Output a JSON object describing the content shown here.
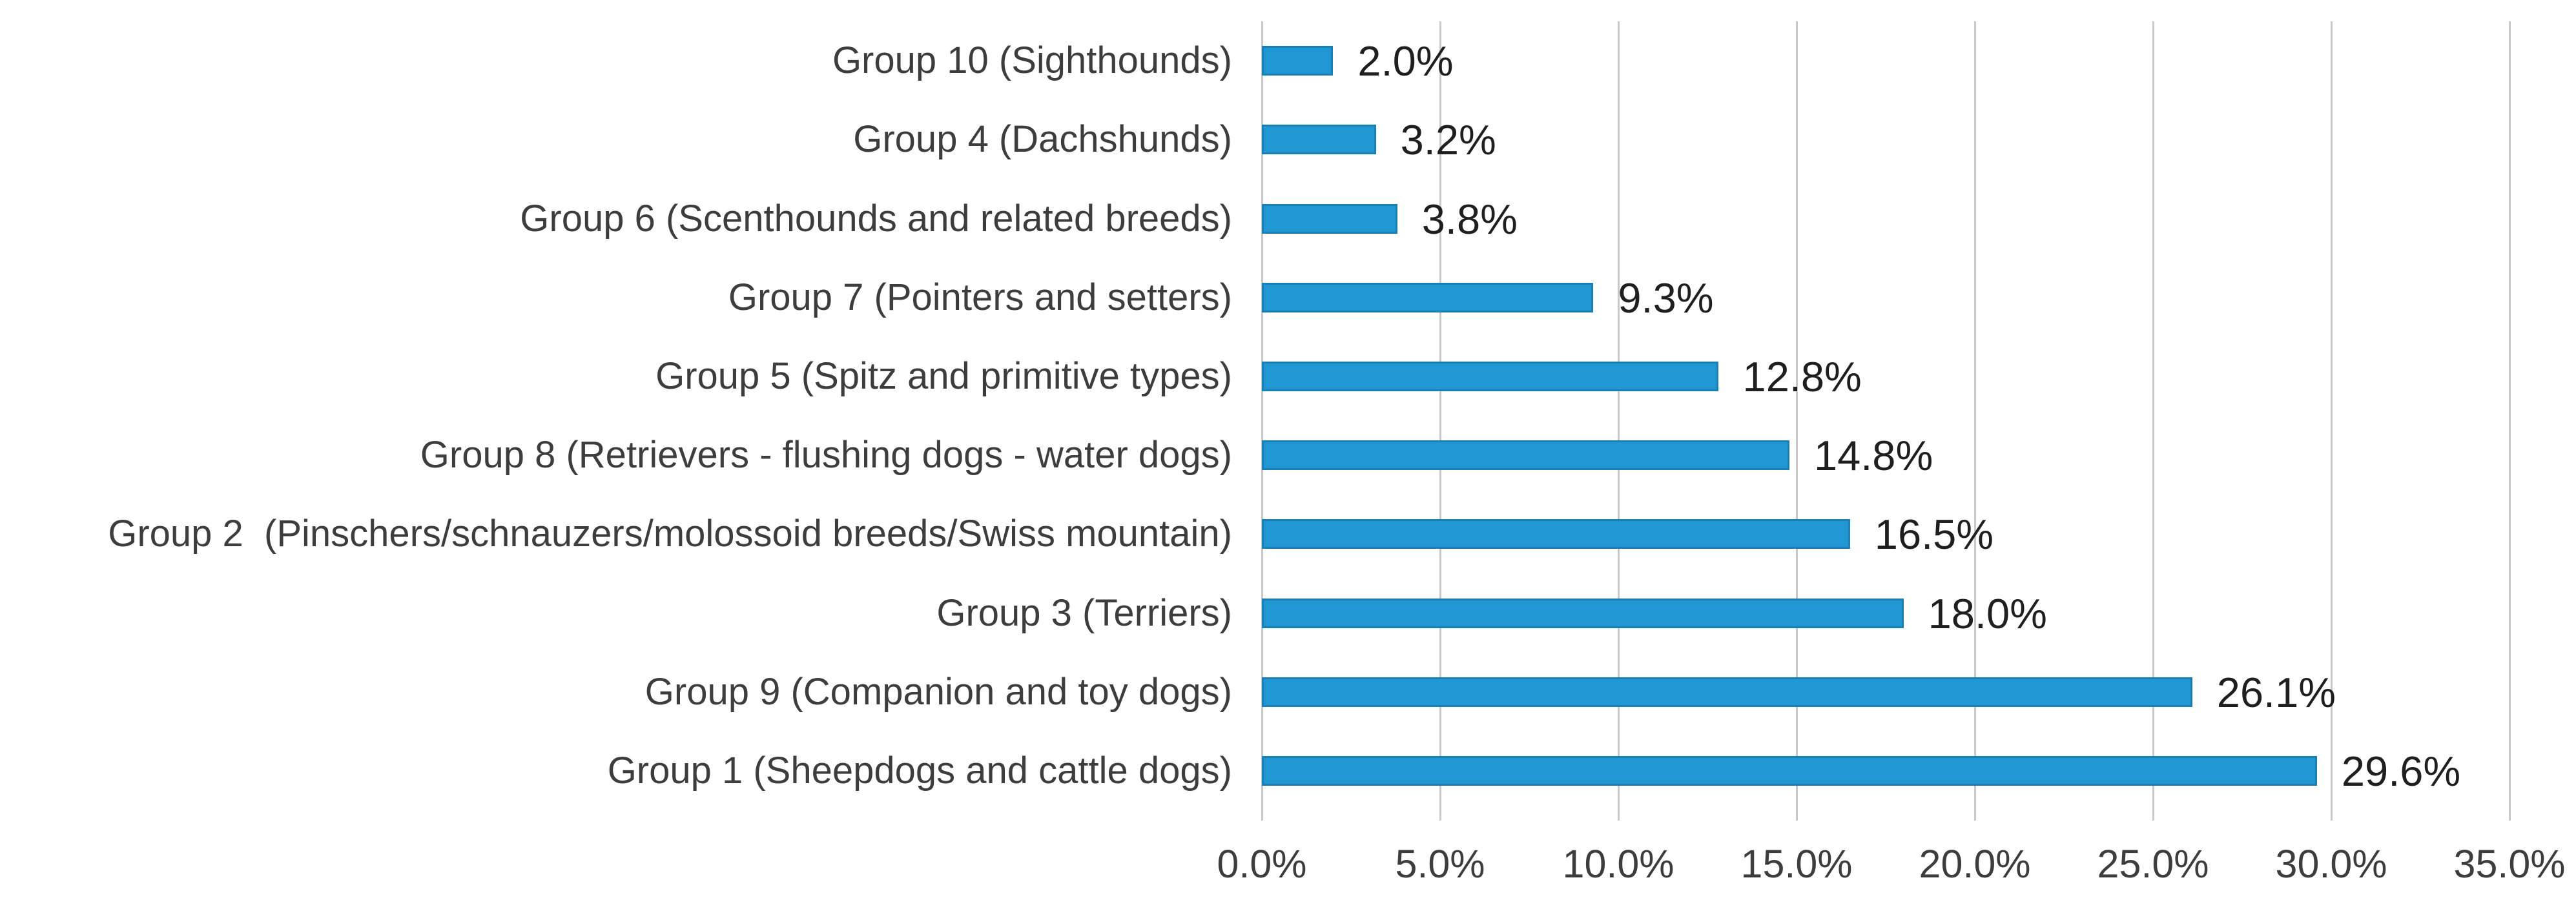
{
  "chart_data": {
    "type": "bar",
    "orientation": "horizontal",
    "title": "",
    "xlabel": "",
    "ylabel": "",
    "grid": true,
    "legend_position": "none",
    "xlim": [
      0,
      35
    ],
    "x_tick_step": 5,
    "x_tick_labels": [
      "0.0%",
      "5.0%",
      "10.0%",
      "15.0%",
      "20.0%",
      "25.0%",
      "30.0%",
      "35.0%"
    ],
    "categories": [
      "Group 10 (Sighthounds)",
      "Group 4 (Dachshunds)",
      "Group 6 (Scenthounds and related breeds)",
      "Group 7 (Pointers and setters)",
      "Group 5 (Spitz and primitive types)",
      "Group 8 (Retrievers - flushing dogs - water dogs)",
      "Group 2  (Pinschers/schnauzers/molossoid breeds/Swiss mountain)",
      "Group 3 (Terriers)",
      "Group 9 (Companion and toy dogs)",
      "Group 1 (Sheepdogs and cattle dogs)"
    ],
    "values": [
      2.0,
      3.2,
      3.8,
      9.3,
      12.8,
      14.8,
      16.5,
      18.0,
      26.1,
      29.6
    ],
    "data_labels": [
      "2.0%",
      "3.2%",
      "3.8%",
      "9.3%",
      "12.8%",
      "14.8%",
      "16.5%",
      "18.0%",
      "26.1%",
      "29.6%"
    ],
    "colors": {
      "bar_fill": "#2096d3",
      "bar_border": "#1a7fb4",
      "gridline": "#c9c9c9",
      "category_text": "#3d3d3d",
      "data_label_text": "#1f1f1f",
      "axis_tick_text": "#3d3d3d",
      "background": "#ffffff"
    }
  }
}
